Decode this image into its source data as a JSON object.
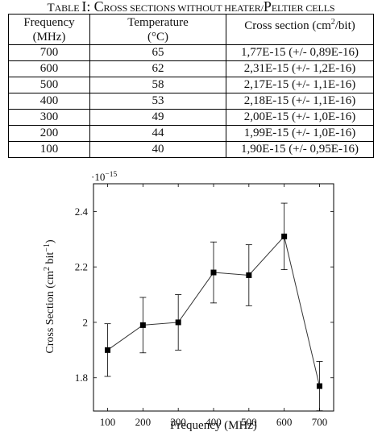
{
  "caption": {
    "prefix": "T",
    "label": "ABLE ",
    "number": "I",
    "colon": ": ",
    "first": "C",
    "title_mid": "ROSS SECTIONS WITHOUT HEATER/",
    "first2": "P",
    "title_end": "ELTIER CELLS"
  },
  "table": {
    "headers": [
      {
        "line1": "Frequency",
        "line2": "(MHz)"
      },
      {
        "line1": "Temperature",
        "line2": "(°C)"
      },
      {
        "line1": "Cross section (cm",
        "sup": "2",
        "line1_end": "/bit)"
      }
    ],
    "rows": [
      {
        "freq": "700",
        "temp": "65",
        "cross": "1,77E-15 (+/- 0,89E-16)"
      },
      {
        "freq": "600",
        "temp": "62",
        "cross": "2,31E-15 (+/- 1,2E-16)"
      },
      {
        "freq": "500",
        "temp": "58",
        "cross": "2,17E-15 (+/- 1,1E-16)"
      },
      {
        "freq": "400",
        "temp": "53",
        "cross": "2,18E-15 (+/- 1,1E-16)"
      },
      {
        "freq": "300",
        "temp": "49",
        "cross": "2,00E-15 (+/- 1,0E-16)"
      },
      {
        "freq": "200",
        "temp": "44",
        "cross": "1,99E-15 (+/- 1,0E-16)"
      },
      {
        "freq": "100",
        "temp": "40",
        "cross": "1,90E-15 (+/- 0,95E-16)"
      }
    ]
  },
  "chart_data": {
    "type": "line",
    "title": "",
    "xlabel": "Frequency (MHz)",
    "ylabel_main": "Cross Section (cm",
    "ylabel_sup1": "2",
    "ylabel_mid": " bit",
    "ylabel_sup2": "−1",
    "ylabel_end": ")",
    "scale_prefix": "·10",
    "scale_exp": "−15",
    "xlim": [
      60,
      740
    ],
    "ylim": [
      1.68,
      2.5
    ],
    "xticks": [
      100,
      200,
      300,
      400,
      500,
      600,
      700
    ],
    "yticks": [
      1.8,
      2.0,
      2.2,
      2.4
    ],
    "ytick_labels": [
      "1.8",
      "2",
      "2.2",
      "2.4"
    ],
    "grid": false,
    "marker": "square",
    "line_color": "#333333",
    "points": [
      {
        "x": 100,
        "y": 1.9,
        "err": 0.095
      },
      {
        "x": 200,
        "y": 1.99,
        "err": 0.1
      },
      {
        "x": 300,
        "y": 2.0,
        "err": 0.1
      },
      {
        "x": 400,
        "y": 2.18,
        "err": 0.11
      },
      {
        "x": 500,
        "y": 2.17,
        "err": 0.11
      },
      {
        "x": 600,
        "y": 2.31,
        "err": 0.12
      },
      {
        "x": 700,
        "y": 1.77,
        "err": 0.089
      }
    ]
  }
}
